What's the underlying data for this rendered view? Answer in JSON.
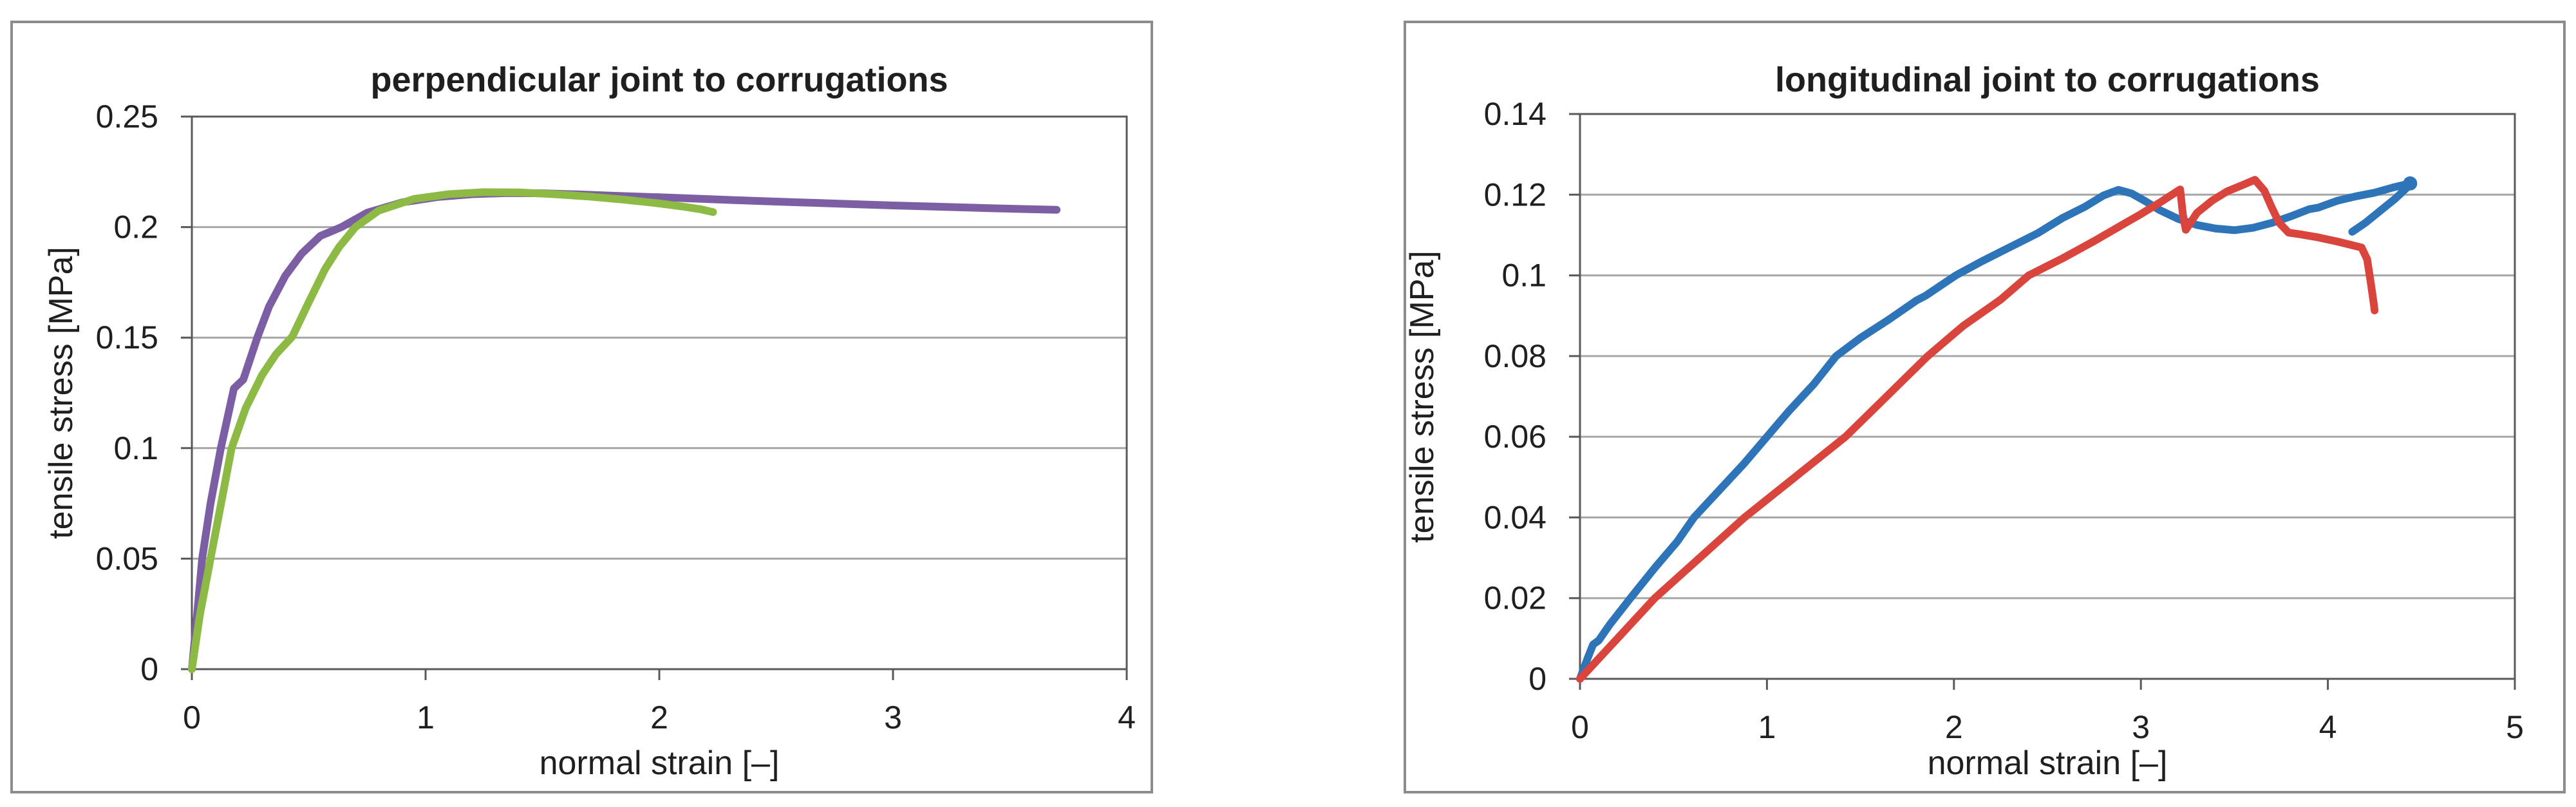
{
  "style": {
    "grid_color": "#a6a6a6",
    "axis_frame_color": "#595959",
    "tick_color": "#595959",
    "text_color": "#1f1f1f",
    "panel_border_color": "#8c8c8c",
    "background": "#ffffff"
  },
  "chart_data": [
    {
      "id": "perpendicular",
      "type": "line",
      "title": "perpendicular joint to corrugations",
      "xlabel": "normal strain [–]",
      "ylabel": "tensile stress  [MPa]",
      "xlim": [
        0,
        4
      ],
      "ylim": [
        0,
        0.25
      ],
      "x_ticks": [
        "0",
        "1",
        "2",
        "3",
        "4"
      ],
      "x_tick_values": [
        0,
        1,
        2,
        3,
        4
      ],
      "y_ticks": [
        "0",
        "0.05",
        "0.1",
        "0.15",
        "0.2",
        "0.25"
      ],
      "y_tick_values": [
        0,
        0.05,
        0.1,
        0.15,
        0.2,
        0.25
      ],
      "grid": "horizontal",
      "legend": "none",
      "series": [
        {
          "name": "purple-curve",
          "color": "#7b5ea3",
          "segments": [
            [
              [
                0,
                0
              ],
              [
                0.02,
                0.022
              ],
              [
                0.044,
                0.05
              ],
              [
                0.08,
                0.075
              ],
              [
                0.124,
                0.1
              ],
              [
                0.18,
                0.127
              ],
              [
                0.22,
                0.131
              ],
              [
                0.28,
                0.15
              ],
              [
                0.33,
                0.164
              ],
              [
                0.4,
                0.178
              ],
              [
                0.47,
                0.188
              ],
              [
                0.55,
                0.196
              ],
              [
                0.64,
                0.2
              ],
              [
                0.75,
                0.2065
              ],
              [
                0.9,
                0.2112
              ],
              [
                1.05,
                0.2136
              ],
              [
                1.2,
                0.2149
              ],
              [
                1.35,
                0.2154
              ],
              [
                1.5,
                0.2153
              ],
              [
                1.65,
                0.2148
              ],
              [
                1.8,
                0.2142
              ],
              [
                2.0,
                0.2135
              ],
              [
                2.2,
                0.2127
              ],
              [
                2.4,
                0.2119
              ],
              [
                2.6,
                0.2112
              ],
              [
                2.8,
                0.2105
              ],
              [
                3.0,
                0.2098
              ],
              [
                3.2,
                0.2092
              ],
              [
                3.4,
                0.2086
              ],
              [
                3.55,
                0.2082
              ],
              [
                3.7,
                0.2078
              ]
            ]
          ]
        },
        {
          "name": "green-curve",
          "color": "#8cba44",
          "segments": [
            [
              [
                0,
                0
              ],
              [
                0.035,
                0.025
              ],
              [
                0.08,
                0.05
              ],
              [
                0.125,
                0.075
              ],
              [
                0.17,
                0.1
              ],
              [
                0.23,
                0.118
              ],
              [
                0.3,
                0.133
              ],
              [
                0.36,
                0.1425
              ],
              [
                0.43,
                0.1505
              ],
              [
                0.5,
                0.166
              ],
              [
                0.57,
                0.181
              ],
              [
                0.63,
                0.191
              ],
              [
                0.7,
                0.2
              ],
              [
                0.8,
                0.2075
              ],
              [
                0.95,
                0.2127
              ],
              [
                1.1,
                0.2149
              ],
              [
                1.25,
                0.2158
              ],
              [
                1.4,
                0.2157
              ],
              [
                1.55,
                0.2149
              ],
              [
                1.7,
                0.2138
              ],
              [
                1.85,
                0.2124
              ],
              [
                2.0,
                0.2107
              ],
              [
                2.1,
                0.2093
              ],
              [
                2.18,
                0.208
              ],
              [
                2.23,
                0.2068
              ]
            ]
          ]
        }
      ]
    },
    {
      "id": "longitudinal",
      "type": "line",
      "title": "longitudinal joint to corrugations",
      "xlabel": "normal strain [–]",
      "ylabel": "tensile stress [MPa]",
      "xlim": [
        0,
        5
      ],
      "ylim": [
        0,
        0.14
      ],
      "x_ticks": [
        "0",
        "1",
        "2",
        "3",
        "4",
        "5"
      ],
      "x_tick_values": [
        0,
        1,
        2,
        3,
        4,
        5
      ],
      "y_ticks": [
        "0",
        "0.02",
        "0.04",
        "0.06",
        "0.08",
        "0.1",
        "0.12",
        "0.14"
      ],
      "y_tick_values": [
        0,
        0.02,
        0.04,
        0.06,
        0.08,
        0.1,
        0.12,
        0.14
      ],
      "grid": "horizontal",
      "legend": "none",
      "series": [
        {
          "name": "blue-curve",
          "color": "#2d74b9",
          "end_dot": [
            4.44,
            0.1228
          ],
          "segments": [
            [
              [
                0,
                0
              ],
              [
                0.04,
                0.005
              ],
              [
                0.07,
                0.0085
              ],
              [
                0.1,
                0.0095
              ],
              [
                0.16,
                0.0135
              ],
              [
                0.27,
                0.02
              ],
              [
                0.4,
                0.0275
              ],
              [
                0.52,
                0.034
              ],
              [
                0.61,
                0.04
              ],
              [
                0.75,
                0.047
              ],
              [
                0.88,
                0.0535
              ],
              [
                1.0,
                0.06
              ],
              [
                1.12,
                0.0665
              ],
              [
                1.25,
                0.073
              ],
              [
                1.37,
                0.08
              ],
              [
                1.5,
                0.0845
              ],
              [
                1.65,
                0.089
              ],
              [
                1.8,
                0.0938
              ],
              [
                1.85,
                0.095
              ],
              [
                2.01,
                0.1
              ],
              [
                2.15,
                0.1035
              ],
              [
                2.3,
                0.107
              ],
              [
                2.45,
                0.1105
              ],
              [
                2.58,
                0.1142
              ],
              [
                2.7,
                0.117
              ],
              [
                2.8,
                0.1198
              ],
              [
                2.88,
                0.1212
              ],
              [
                2.95,
                0.1203
              ],
              [
                3.02,
                0.1185
              ],
              [
                3.1,
                0.1162
              ],
              [
                3.2,
                0.114
              ],
              [
                3.3,
                0.1125
              ],
              [
                3.4,
                0.1116
              ],
              [
                3.5,
                0.1112
              ],
              [
                3.6,
                0.1118
              ],
              [
                3.7,
                0.113
              ],
              [
                3.8,
                0.1146
              ],
              [
                3.9,
                0.1164
              ],
              [
                3.95,
                0.1168
              ],
              [
                4.05,
                0.1185
              ],
              [
                4.15,
                0.1196
              ],
              [
                4.25,
                0.1205
              ],
              [
                4.35,
                0.1218
              ],
              [
                4.44,
                0.1228
              ]
            ],
            [
              [
                4.13,
                0.1108
              ],
              [
                4.2,
                0.113
              ],
              [
                4.28,
                0.116
              ],
              [
                4.36,
                0.119
              ],
              [
                4.44,
                0.1225
              ]
            ]
          ]
        },
        {
          "name": "red-curve",
          "color": "#d9453c",
          "segments": [
            [
              [
                0,
                0
              ],
              [
                0.2,
                0.01
              ],
              [
                0.4,
                0.02
              ],
              [
                0.64,
                0.03
              ],
              [
                0.88,
                0.04
              ],
              [
                1.15,
                0.05
              ],
              [
                1.42,
                0.06
              ],
              [
                1.64,
                0.07
              ],
              [
                1.86,
                0.08
              ],
              [
                2.05,
                0.0875
              ],
              [
                2.25,
                0.094
              ],
              [
                2.4,
                0.1
              ],
              [
                2.58,
                0.1042
              ],
              [
                2.75,
                0.1085
              ],
              [
                2.88,
                0.112
              ],
              [
                3.0,
                0.1152
              ],
              [
                3.1,
                0.118
              ],
              [
                3.21,
                0.1213
              ],
              [
                3.225,
                0.115
              ],
              [
                3.24,
                0.1113
              ],
              [
                3.3,
                0.1155
              ],
              [
                3.38,
                0.1185
              ],
              [
                3.46,
                0.1208
              ],
              [
                3.55,
                0.1225
              ],
              [
                3.61,
                0.1237
              ],
              [
                3.66,
                0.121
              ],
              [
                3.7,
                0.1168
              ],
              [
                3.74,
                0.113
              ],
              [
                3.79,
                0.1106
              ],
              [
                3.85,
                0.1102
              ],
              [
                3.95,
                0.1094
              ],
              [
                4.05,
                0.1084
              ],
              [
                4.12,
                0.1076
              ],
              [
                4.18,
                0.1069
              ],
              [
                4.21,
                0.104
              ],
              [
                4.23,
                0.098
              ],
              [
                4.245,
                0.0932
              ],
              [
                4.25,
                0.0913
              ]
            ]
          ]
        }
      ]
    }
  ]
}
